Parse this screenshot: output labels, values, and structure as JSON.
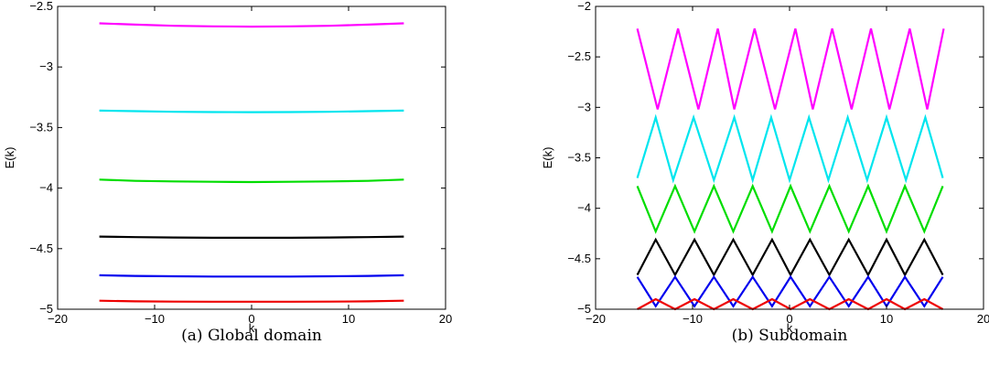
{
  "chart_data": [
    {
      "type": "line",
      "caption": "(a)  Global domain",
      "xlabel": "k",
      "ylabel": "E(k)",
      "xlim": [
        -20,
        20
      ],
      "ylim": [
        -5,
        -2.5
      ],
      "xticks": [
        -20,
        -10,
        0,
        10,
        20
      ],
      "xtick_labels": [
        "−20",
        "−10",
        "0",
        "10",
        "20"
      ],
      "yticks": [
        -5,
        -4.5,
        -4,
        -3.5,
        -3,
        -2.5
      ],
      "ytick_labels": [
        "−5",
        "−4.5",
        "−4",
        "−3.5",
        "−3",
        "−2.5"
      ],
      "grid": false,
      "series": [
        {
          "color": "#ff00ff",
          "x": [
            -15.7,
            -12,
            -8,
            -4,
            0,
            4,
            8,
            12,
            15.7
          ],
          "y": [
            -2.64,
            -2.65,
            -2.66,
            -2.665,
            -2.667,
            -2.665,
            -2.66,
            -2.65,
            -2.64
          ]
        },
        {
          "color": "#00e5ee",
          "x": [
            -15.7,
            -12,
            -8,
            -4,
            0,
            4,
            8,
            12,
            15.7
          ],
          "y": [
            -3.36,
            -3.365,
            -3.37,
            -3.372,
            -3.373,
            -3.372,
            -3.37,
            -3.365,
            -3.36
          ]
        },
        {
          "color": "#00dd00",
          "x": [
            -15.7,
            -12,
            -8,
            -4,
            0,
            4,
            8,
            12,
            15.7
          ],
          "y": [
            -3.93,
            -3.94,
            -3.945,
            -3.948,
            -3.95,
            -3.948,
            -3.945,
            -3.94,
            -3.93
          ]
        },
        {
          "color": "#000000",
          "x": [
            -15.7,
            -12,
            -8,
            -4,
            0,
            4,
            8,
            12,
            15.7
          ],
          "y": [
            -4.4,
            -4.405,
            -4.408,
            -4.41,
            -4.41,
            -4.41,
            -4.408,
            -4.405,
            -4.4
          ]
        },
        {
          "color": "#0000ee",
          "x": [
            -15.7,
            -12,
            -8,
            -4,
            0,
            4,
            8,
            12,
            15.7
          ],
          "y": [
            -4.72,
            -4.725,
            -4.728,
            -4.73,
            -4.73,
            -4.73,
            -4.728,
            -4.725,
            -4.72
          ]
        },
        {
          "color": "#ee0000",
          "x": [
            -15.7,
            -12,
            -8,
            -4,
            0,
            4,
            8,
            12,
            15.7
          ],
          "y": [
            -4.93,
            -4.935,
            -4.937,
            -4.938,
            -4.938,
            -4.938,
            -4.937,
            -4.935,
            -4.93
          ]
        }
      ]
    },
    {
      "type": "line",
      "caption": "(b)  Subdomain",
      "xlabel": "k",
      "ylabel": "E(k)",
      "xlim": [
        -20,
        20
      ],
      "ylim": [
        -5,
        -2
      ],
      "xticks": [
        -20,
        -10,
        0,
        10,
        20
      ],
      "xtick_labels": [
        "−20",
        "−10",
        "0",
        "10",
        "20"
      ],
      "yticks": [
        -5,
        -4.5,
        -4,
        -3.5,
        -3,
        -2.5,
        -2
      ],
      "ytick_labels": [
        "−5",
        "−4.5",
        "−4",
        "−3.5",
        "−3",
        "−2.5",
        "−2"
      ],
      "grid": false,
      "series": [
        {
          "color": "#ff00ff",
          "x": [
            -15.7,
            -13.6,
            -11.5,
            -9.4,
            -7.4,
            -5.7,
            -3.6,
            -1.5,
            0.6,
            2.4,
            4.4,
            6.4,
            8.4,
            10.3,
            12.4,
            14.2,
            15.9
          ],
          "y": [
            -2.22,
            -3.02,
            -2.22,
            -3.02,
            -2.22,
            -3.02,
            -2.22,
            -3.02,
            -2.22,
            -3.02,
            -2.22,
            -3.02,
            -2.22,
            -3.02,
            -2.22,
            -3.02,
            -2.22
          ]
        },
        {
          "color": "#00e5ee",
          "x": [
            -15.7,
            -13.8,
            -12,
            -9.9,
            -7.8,
            -5.7,
            -3.8,
            -1.9,
            0,
            2,
            4,
            6,
            8,
            10,
            12,
            14,
            15.8
          ],
          "y": [
            -3.7,
            -3.1,
            -3.72,
            -3.1,
            -3.72,
            -3.1,
            -3.72,
            -3.1,
            -3.72,
            -3.1,
            -3.72,
            -3.1,
            -3.72,
            -3.1,
            -3.72,
            -3.1,
            -3.7
          ]
        },
        {
          "color": "#00dd00",
          "x": [
            -15.7,
            -13.8,
            -11.8,
            -9.8,
            -7.8,
            -5.8,
            -3.8,
            -1.8,
            0.1,
            2.1,
            4.1,
            6.1,
            8.1,
            10,
            11.9,
            13.9,
            15.8
          ],
          "y": [
            -3.78,
            -4.23,
            -3.78,
            -4.23,
            -3.78,
            -4.23,
            -3.78,
            -4.23,
            -3.78,
            -4.23,
            -3.78,
            -4.23,
            -3.78,
            -4.23,
            -3.78,
            -4.23,
            -3.78
          ]
        },
        {
          "color": "#000000",
          "x": [
            -15.7,
            -13.8,
            -11.8,
            -9.8,
            -7.8,
            -5.8,
            -3.8,
            -1.8,
            0.1,
            2.1,
            4.1,
            6.1,
            8.1,
            10,
            11.9,
            13.9,
            15.8
          ],
          "y": [
            -4.66,
            -4.31,
            -4.66,
            -4.31,
            -4.66,
            -4.31,
            -4.66,
            -4.31,
            -4.66,
            -4.31,
            -4.66,
            -4.31,
            -4.66,
            -4.31,
            -4.66,
            -4.31,
            -4.66
          ]
        },
        {
          "color": "#0000ee",
          "x": [
            -15.7,
            -13.8,
            -11.8,
            -9.8,
            -7.8,
            -5.8,
            -3.8,
            -1.8,
            0.1,
            2.1,
            4.1,
            6.1,
            8.1,
            10,
            11.9,
            13.9,
            15.8
          ],
          "y": [
            -4.68,
            -4.97,
            -4.68,
            -4.97,
            -4.68,
            -4.97,
            -4.68,
            -4.97,
            -4.68,
            -4.97,
            -4.68,
            -4.97,
            -4.68,
            -4.97,
            -4.68,
            -4.97,
            -4.68
          ]
        },
        {
          "color": "#ee0000",
          "x": [
            -15.7,
            -13.8,
            -11.8,
            -9.8,
            -7.8,
            -5.8,
            -3.8,
            -1.8,
            0.1,
            2.1,
            4.1,
            6.1,
            8.1,
            10,
            11.9,
            13.9,
            15.8
          ],
          "y": [
            -5,
            -4.9,
            -5,
            -4.9,
            -5,
            -4.9,
            -5,
            -4.9,
            -5,
            -4.9,
            -5,
            -4.9,
            -5,
            -4.9,
            -5,
            -4.9,
            -5
          ]
        }
      ]
    }
  ]
}
